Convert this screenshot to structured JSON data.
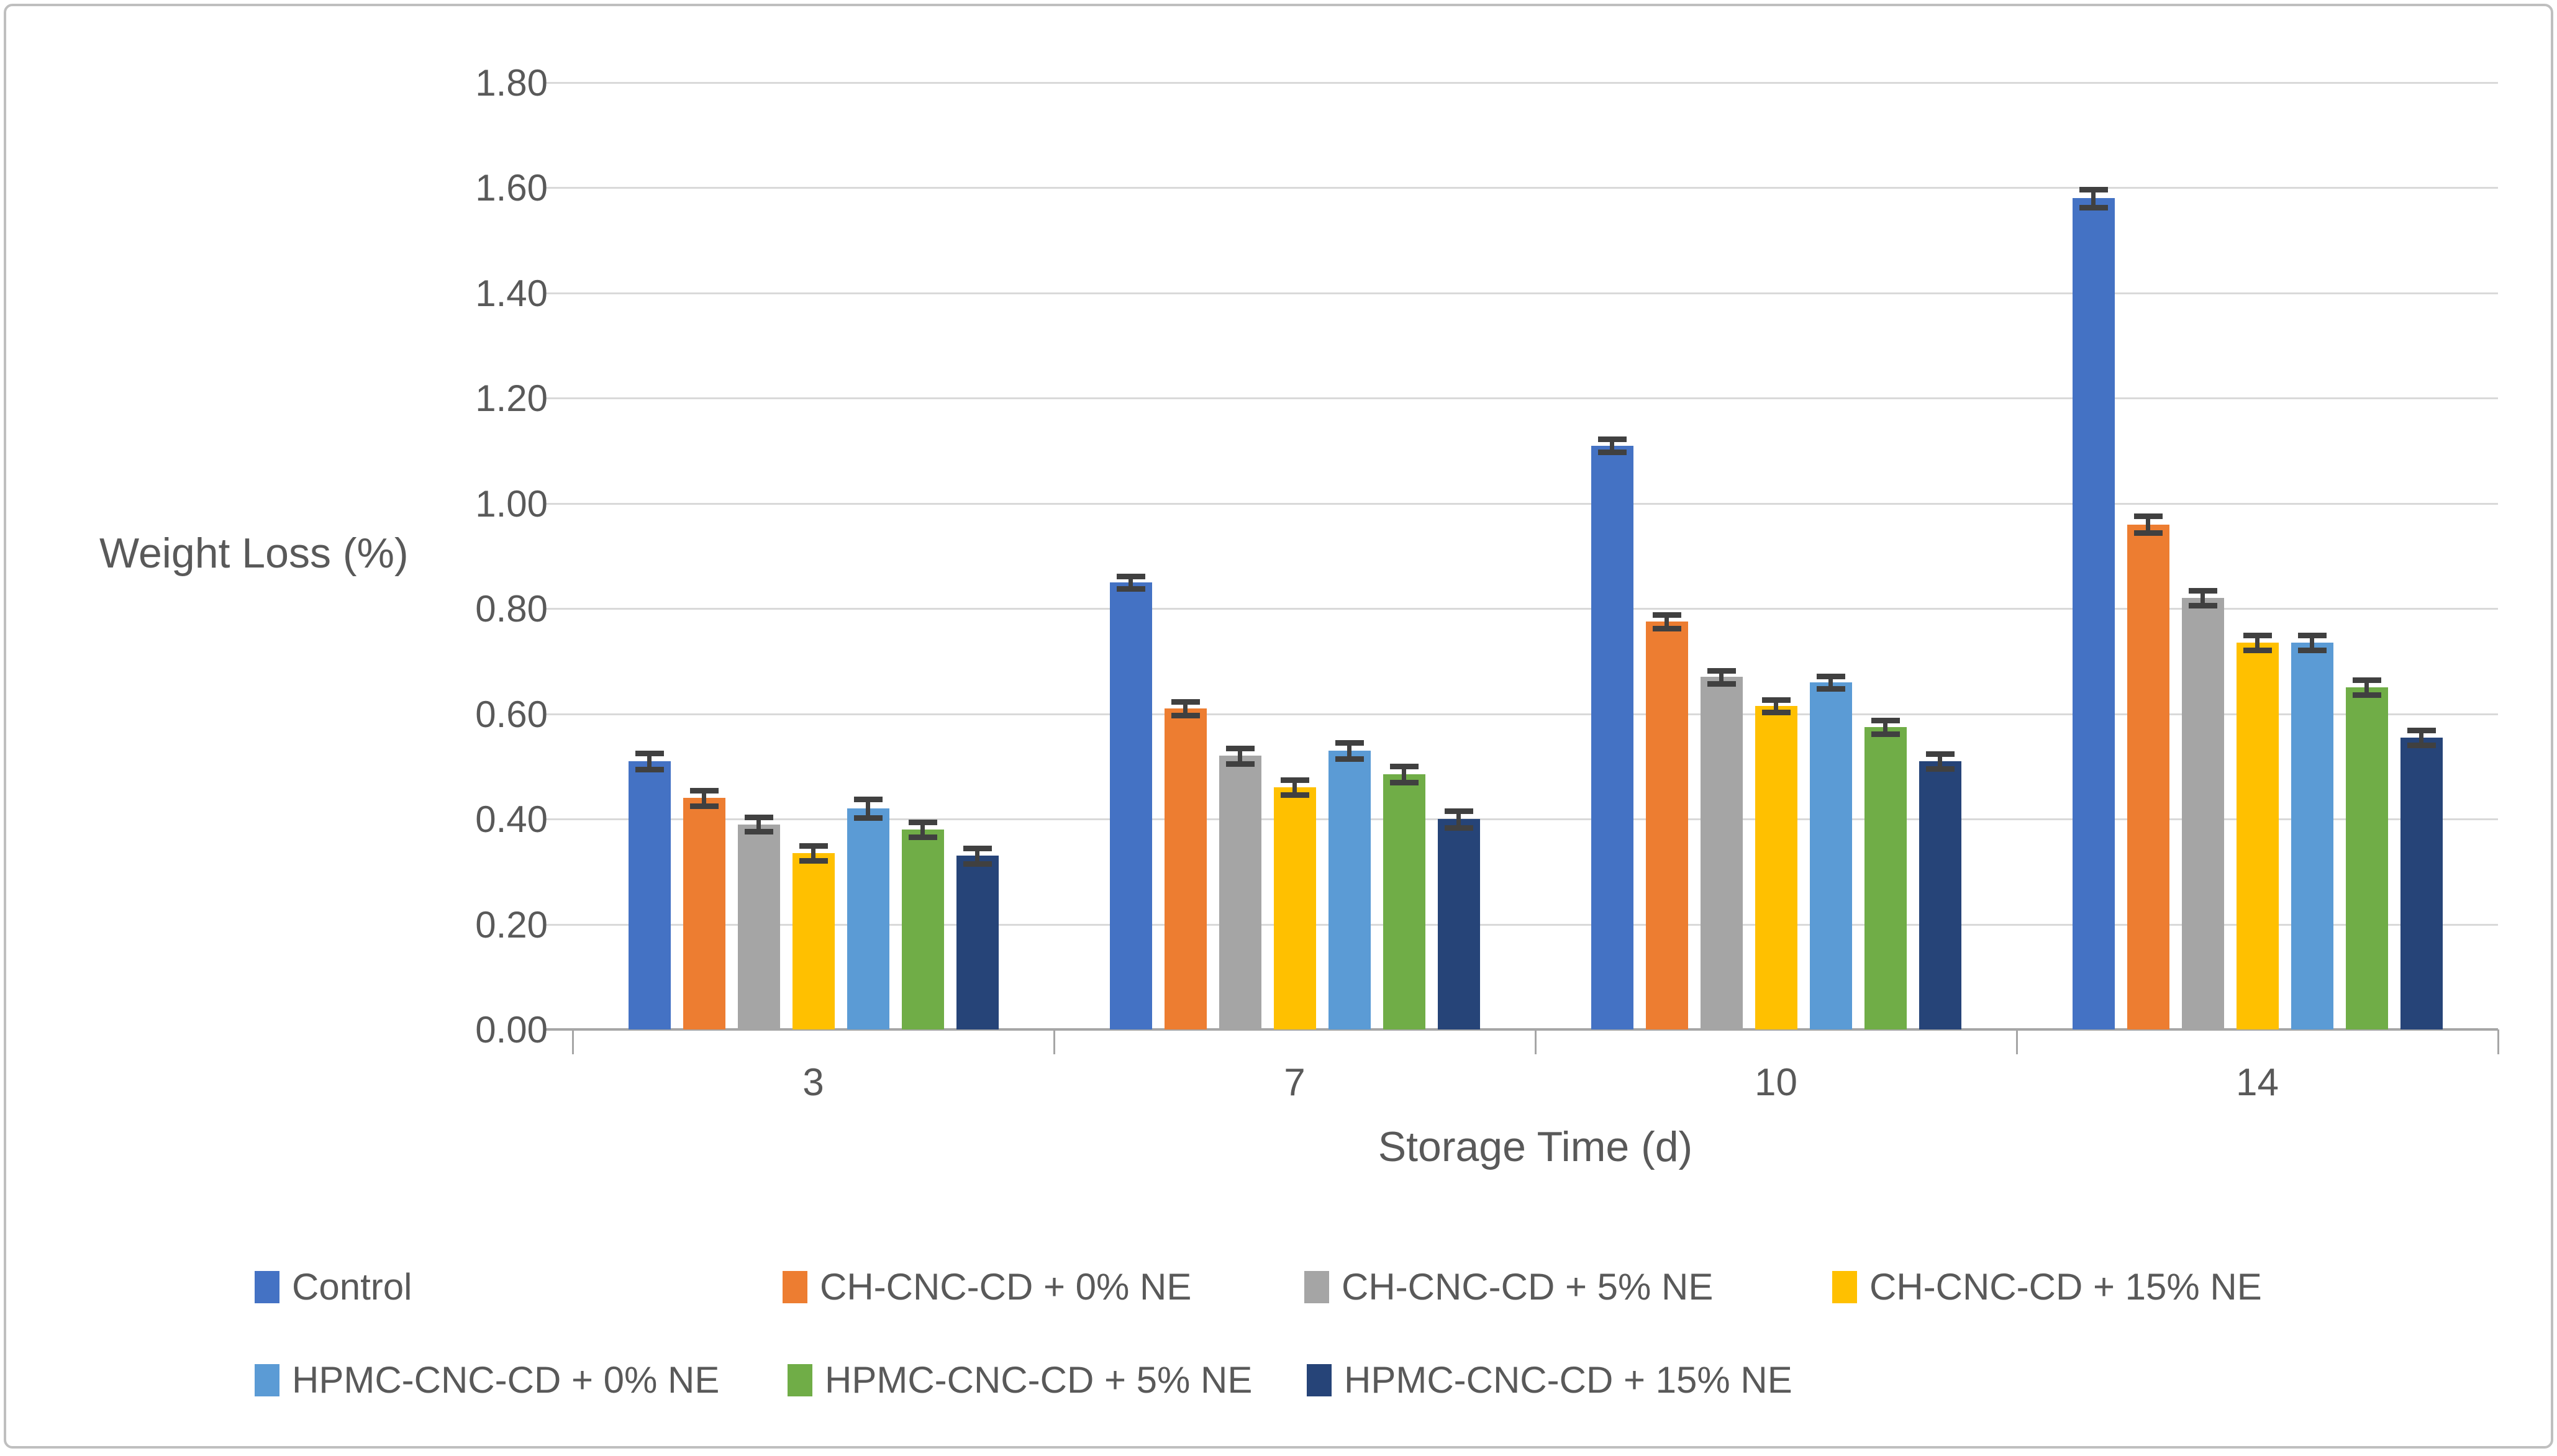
{
  "figure": {
    "background": "#ffffff",
    "border_color": "#bfbfbf"
  },
  "chart_data": {
    "type": "bar",
    "title": "",
    "xlabel": "Storage Time (d)",
    "ylabel": "Weight Loss (%)",
    "categories": [
      "3",
      "7",
      "10",
      "14"
    ],
    "y_ticks": [
      "0.00",
      "0.20",
      "0.40",
      "0.60",
      "0.80",
      "1.00",
      "1.20",
      "1.40",
      "1.60",
      "1.80"
    ],
    "ylim": [
      0,
      1.8
    ],
    "grid": true,
    "legend_position": "bottom",
    "error_bars": true,
    "series": [
      {
        "name": "Control",
        "color": "#4472C4",
        "values": [
          0.51,
          0.85,
          1.11,
          1.58
        ],
        "errors": [
          0.015,
          0.012,
          0.012,
          0.017
        ]
      },
      {
        "name": "CH-CNC-CD + 0% NE",
        "color": "#ED7D31",
        "values": [
          0.44,
          0.61,
          0.775,
          0.96
        ],
        "errors": [
          0.015,
          0.013,
          0.013,
          0.016
        ]
      },
      {
        "name": "CH-CNC-CD + 5% NE",
        "color": "#A5A5A5",
        "values": [
          0.39,
          0.52,
          0.67,
          0.82
        ],
        "errors": [
          0.014,
          0.015,
          0.012,
          0.014
        ]
      },
      {
        "name": "CH-CNC-CD + 15% NE",
        "color": "#FFC000",
        "values": [
          0.335,
          0.46,
          0.615,
          0.735
        ],
        "errors": [
          0.014,
          0.014,
          0.012,
          0.014
        ]
      },
      {
        "name": "HPMC-CNC-CD + 0% NE",
        "color": "#5B9BD5",
        "values": [
          0.42,
          0.53,
          0.66,
          0.735
        ],
        "errors": [
          0.018,
          0.015,
          0.012,
          0.014
        ]
      },
      {
        "name": "HPMC-CNC-CD + 5% NE",
        "color": "#70AD47",
        "values": [
          0.38,
          0.485,
          0.575,
          0.65
        ],
        "errors": [
          0.014,
          0.015,
          0.013,
          0.014
        ]
      },
      {
        "name": "HPMC-CNC-CD + 15% NE",
        "color": "#264478",
        "values": [
          0.33,
          0.4,
          0.51,
          0.555
        ],
        "errors": [
          0.015,
          0.016,
          0.014,
          0.014
        ]
      }
    ],
    "gridline_color": "#d9d9d9",
    "axis_line_color": "#a6a6a6",
    "error_bar_color": "#404040",
    "text_color": "#595959"
  }
}
